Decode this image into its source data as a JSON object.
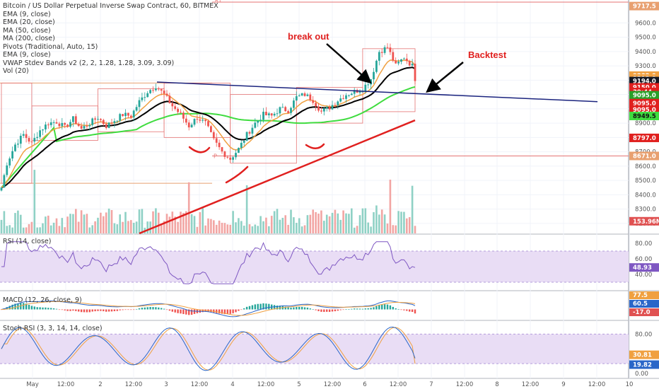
{
  "legend": [
    "Bitcoin / US Dollar Perpetual Inverse Swap Contract, 60, BITMEX",
    "EMA (9, close)",
    "EMA (20, close)",
    "MA (50, close)",
    "MA (200, close)",
    "Pivots (Traditional, Auto, 15)",
    "EMA (9, close)",
    "VWAP Stdev Bands v2 (2, 2, 1.28, 1.28, 3.09, 3.09)",
    "Vol (20)"
  ],
  "panes": {
    "rsi_label": "RSI (14, close)",
    "macd_label": "MACD (12, 26, close, 9)",
    "stoch_label": "Stoch RSI (3, 3, 14, 14, close)"
  },
  "annotations": {
    "breakout": "break out",
    "backtest": "Backtest"
  },
  "price_axis": {
    "ticks": [
      "9600.0",
      "9500.0",
      "9400.0",
      "9300.0",
      "9200.0",
      "9100.0",
      "9000.0",
      "8900.0",
      "8800.0",
      "8700.0",
      "8600.0",
      "8500.0",
      "8400.0",
      "8300.0",
      "8200.0"
    ],
    "badges": [
      {
        "text": "9717.5",
        "color": "#e8a070",
        "price": 9717.5
      },
      {
        "text": "9232.0",
        "color": "#f0a040",
        "price": 9232
      },
      {
        "text": "9212.0",
        "color": "#f0a040",
        "price": 9212
      },
      {
        "text": "9194.0",
        "color": "#131722",
        "price": 9194
      },
      {
        "text": "9150.0",
        "color": "#e0201f",
        "price": 9150
      },
      {
        "text": "39:44",
        "color": "#e0201f",
        "price": 9118
      },
      {
        "text": "9095.0",
        "color": "#2aa02a",
        "price": 9095
      },
      {
        "text": "9095.0",
        "color": "#e0201f",
        "price": 9040
      },
      {
        "text": "9095.0",
        "color": "#e0201f",
        "price": 8995
      },
      {
        "text": "8949.5",
        "color": "#3fdc3f",
        "price": 8950
      },
      {
        "text": "8797.0",
        "color": "#e0201f",
        "price": 8797
      },
      {
        "text": "8671.0",
        "color": "#e8a070",
        "price": 8671
      },
      {
        "text": "153.96M",
        "color": "#e05252",
        "price": 8215
      }
    ]
  },
  "pivot_labels": {
    "r1": "R1",
    "p": "P"
  },
  "rsi_axis": {
    "ticks": [
      "80.00",
      "60.00",
      "40.00"
    ],
    "value": "48.93"
  },
  "macd_axis": {
    "values": [
      {
        "text": "77.5",
        "color": "#f0a040"
      },
      {
        "text": "60.5",
        "color": "#2a66c8"
      },
      {
        "text": "-17.0",
        "color": "#e05252"
      }
    ]
  },
  "stoch_axis": {
    "ticks": [
      "80.00",
      "0.00"
    ],
    "values": [
      {
        "text": "30.81",
        "color": "#f0a040"
      },
      {
        "text": "19.82",
        "color": "#2a66c8"
      }
    ]
  },
  "time_axis": [
    "May",
    "12:00",
    "2",
    "12:00",
    "3",
    "12:00",
    "4",
    "12:00",
    "5",
    "12:00",
    "6",
    "12:00",
    "7",
    "12:00",
    "8",
    "12:00",
    "9",
    "12:00",
    "10"
  ],
  "colors": {
    "up": "#26a69a",
    "down": "#ef5350",
    "trendline": "#1a237e",
    "support": "#e0201f",
    "ema_black": "#000000",
    "ma_green": "#3fdc3f",
    "ema_orange": "#f0a040",
    "vwap_band": "#e57373"
  },
  "chart_data": {
    "type": "candlestick",
    "title": "Bitcoin / US Dollar Perpetual Inverse Swap Contract, 60, BITMEX",
    "y_range": [
      8130,
      9760
    ],
    "x_labels": [
      "May",
      "2",
      "3",
      "4",
      "5",
      "6",
      "7",
      "8",
      "9",
      "10"
    ],
    "price_path": [
      [
        0,
        8450
      ],
      [
        2,
        8620
      ],
      [
        5,
        8750
      ],
      [
        8,
        8820
      ],
      [
        11,
        8760
      ],
      [
        14,
        8850
      ],
      [
        17,
        8900
      ],
      [
        20,
        8910
      ],
      [
        23,
        8870
      ],
      [
        26,
        8930
      ],
      [
        29,
        8860
      ],
      [
        32,
        8900
      ],
      [
        35,
        8940
      ],
      [
        38,
        8880
      ],
      [
        41,
        8920
      ],
      [
        44,
        8960
      ],
      [
        47,
        8950
      ],
      [
        50,
        9050
      ],
      [
        53,
        9120
      ],
      [
        56,
        9160
      ],
      [
        59,
        9100
      ],
      [
        62,
        9020
      ],
      [
        65,
        8960
      ],
      [
        68,
        8880
      ],
      [
        71,
        8940
      ],
      [
        74,
        8900
      ],
      [
        77,
        8780
      ],
      [
        80,
        8700
      ],
      [
        83,
        8650
      ],
      [
        86,
        8720
      ],
      [
        89,
        8820
      ],
      [
        92,
        8900
      ],
      [
        95,
        8960
      ],
      [
        98,
        8950
      ],
      [
        101,
        9000
      ],
      [
        104,
        8990
      ],
      [
        107,
        9080
      ],
      [
        110,
        9100
      ],
      [
        113,
        9060
      ],
      [
        116,
        8980
      ],
      [
        119,
        9010
      ],
      [
        122,
        9060
      ],
      [
        125,
        9100
      ],
      [
        128,
        9120
      ],
      [
        131,
        9140
      ],
      [
        134,
        9210
      ],
      [
        137,
        9400
      ],
      [
        140,
        9430
      ],
      [
        143,
        9300
      ],
      [
        146,
        9360
      ],
      [
        149,
        9300
      ],
      [
        150,
        9194
      ]
    ],
    "trendline_resistance": {
      "from": [
        0,
        9140
      ],
      "to": [
        170,
        9070
      ]
    },
    "trendline_support": {
      "from": [
        41,
        8130
      ],
      "to": [
        150,
        8920
      ]
    },
    "rsi_last": 48.93,
    "stoch_k_last": 30.81,
    "stoch_d_last": 19.82,
    "macd": {
      "macd": 60.5,
      "signal": 77.5,
      "hist": -17.0
    }
  }
}
